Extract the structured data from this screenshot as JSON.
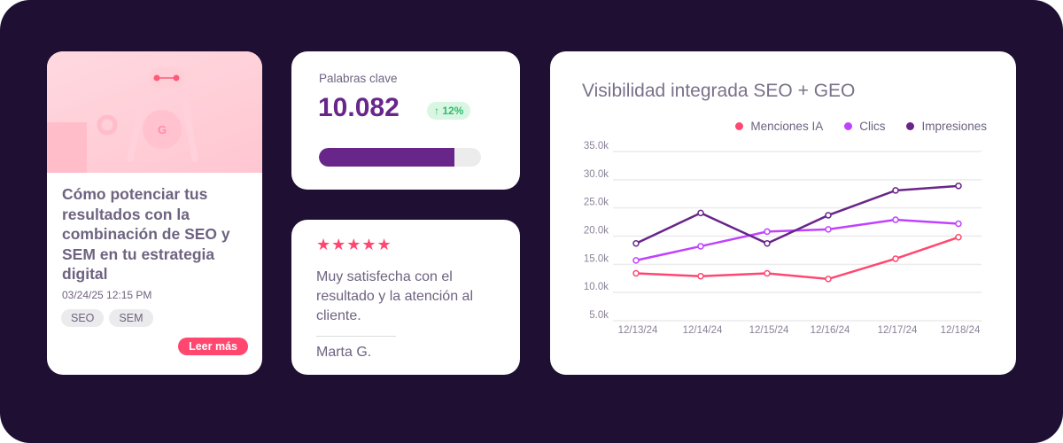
{
  "blog": {
    "title": "Cómo potenciar tus resultados con la combinación de SEO y SEM en tu estrategia digital",
    "date": "03/24/25 12:15 PM",
    "tags": [
      "SEO",
      "SEM"
    ],
    "cta": "Leer más"
  },
  "keywords": {
    "label": "Palabras clave",
    "value": "10.082",
    "change": "↑ 12%",
    "progress": 0.835,
    "color": "#68258a"
  },
  "review": {
    "stars": "★★★★★",
    "rating": 5,
    "text": "Muy satisfecha con el resultado y la atención al cliente.",
    "author": "Marta G."
  },
  "chart_data": {
    "type": "line",
    "title": "Visibilidad integrada SEO + GEO",
    "categories": [
      "12/13/24",
      "12/14/24",
      "12/15/24",
      "12/16/24",
      "12/17/24",
      "12/18/24"
    ],
    "yticks": [
      "5.0k",
      "10.0k",
      "15.0k",
      "20.0k",
      "25.0k",
      "30.0k",
      "35.0k"
    ],
    "ylim": [
      5000,
      35000
    ],
    "legend_position": "top-right",
    "series": [
      {
        "name": "Menciones IA",
        "color": "#ff4770",
        "values": [
          13400,
          12900,
          13400,
          12400,
          16000,
          19800
        ]
      },
      {
        "name": "Clics",
        "color": "#c042ff",
        "values": [
          15700,
          18200,
          20800,
          21200,
          22900,
          22200
        ]
      },
      {
        "name": "Impresiones",
        "color": "#68258a",
        "values": [
          18700,
          24100,
          18700,
          23700,
          28100,
          28900
        ]
      }
    ]
  }
}
